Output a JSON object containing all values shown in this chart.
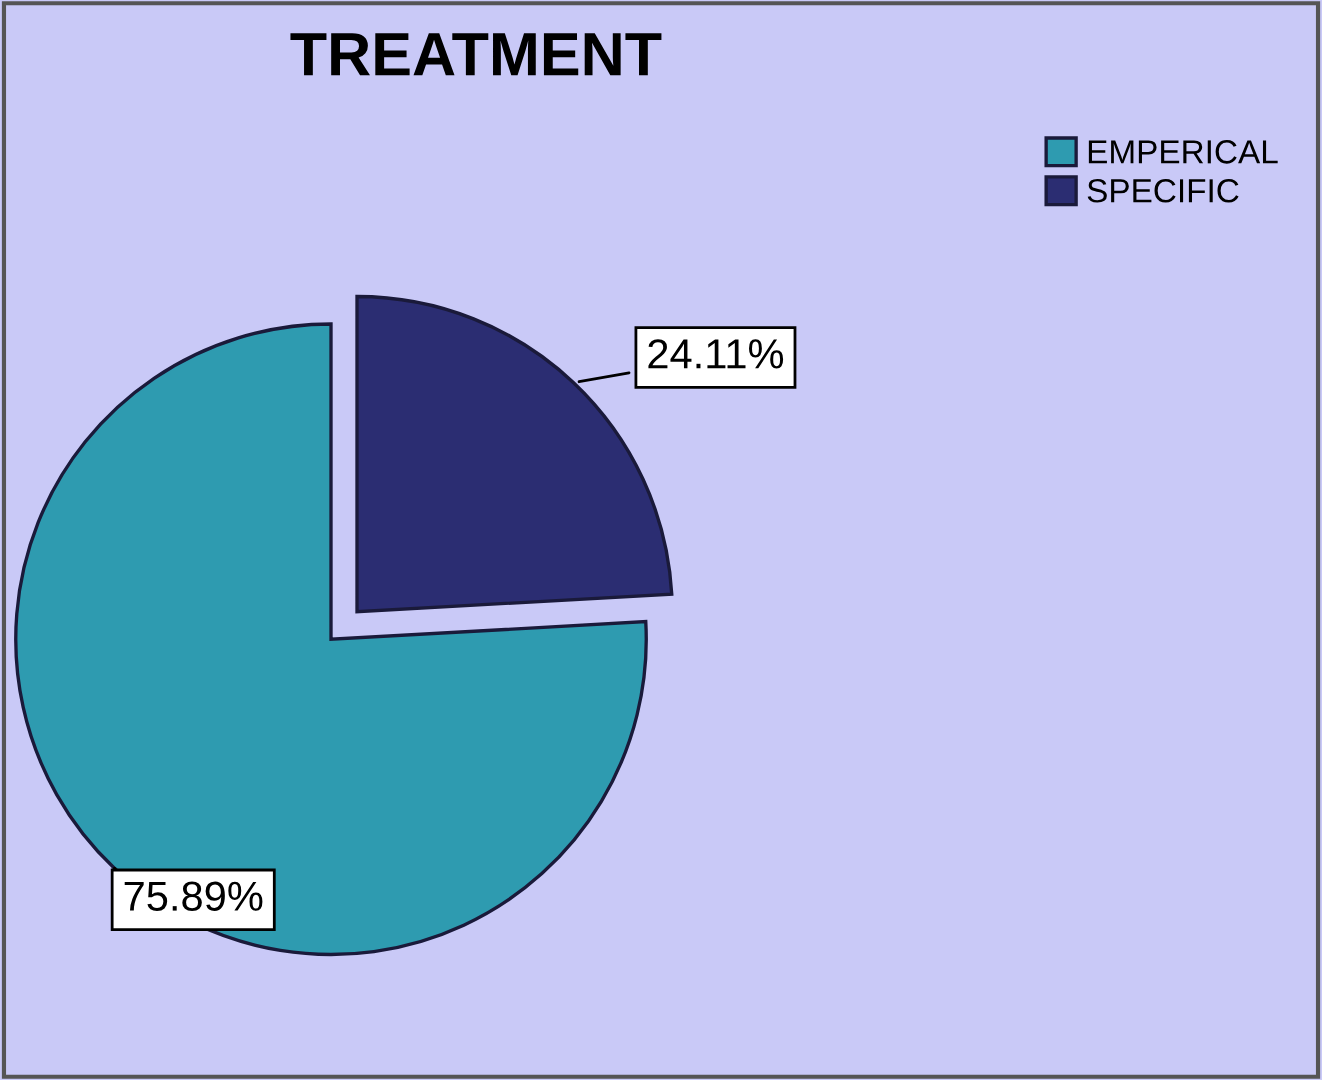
{
  "chart_data": {
    "type": "pie",
    "title": "TREATMENT",
    "categories": [
      "EMPERICAL",
      "SPECIFIC"
    ],
    "values": [
      75.89,
      24.11
    ],
    "colors": [
      "#2e9bb0",
      "#2b2d72"
    ],
    "value_labels": [
      "75.89%",
      "24.11%"
    ],
    "legend": "top right"
  }
}
